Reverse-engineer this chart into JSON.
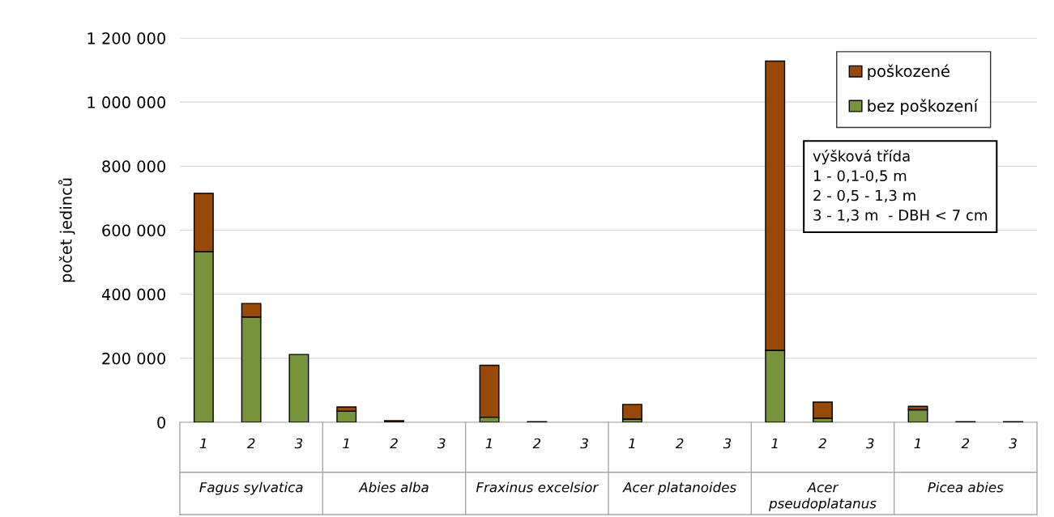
{
  "chart_data": {
    "type": "bar",
    "stacked": true,
    "ylabel": "počet jedinců",
    "categories": [
      "1",
      "2",
      "3",
      "1",
      "2",
      "3",
      "1",
      "2",
      "3",
      "1",
      "2",
      "3",
      "1",
      "2",
      "3",
      "1",
      "2",
      "3"
    ],
    "series": [
      {
        "name": "bez poškození",
        "color": "#77933c",
        "values": [
          533000,
          329000,
          212000,
          35000,
          null,
          null,
          16000,
          null,
          null,
          10000,
          null,
          null,
          225000,
          13000,
          null,
          39000,
          null,
          null
        ]
      },
      {
        "name": "poškozené",
        "color": "#984807",
        "values": [
          182000,
          42000,
          null,
          13000,
          5000,
          null,
          162000,
          2000,
          null,
          46000,
          null,
          null,
          903000,
          50000,
          null,
          11000,
          2000,
          2000
        ]
      }
    ],
    "ylim": [
      0,
      1200000
    ],
    "yticks": [
      {
        "value": 0,
        "label": "0"
      },
      {
        "value": 200000,
        "label": "200 000"
      },
      {
        "value": 400000,
        "label": "400 000"
      },
      {
        "value": 600000,
        "label": "600 000"
      },
      {
        "value": 800000,
        "label": "800 000"
      },
      {
        "value": 1000000,
        "label": "1 000 000"
      },
      {
        "value": 1200000,
        "label": "1 200 000"
      }
    ],
    "grid": "y",
    "legend": "top right",
    "annotations": [
      "Fagus sylvatica",
      "Abies alba",
      "Fraxinus excelsior",
      "Acer platanoides",
      "Acer\npseudoplatanus",
      "Picea abies",
      "výšková třída\n1 - 0,1-0,5 m\n2 - 0,5 - 1,3 m\n3 - 1,3 m  - DBH < 7 cm"
    ]
  }
}
